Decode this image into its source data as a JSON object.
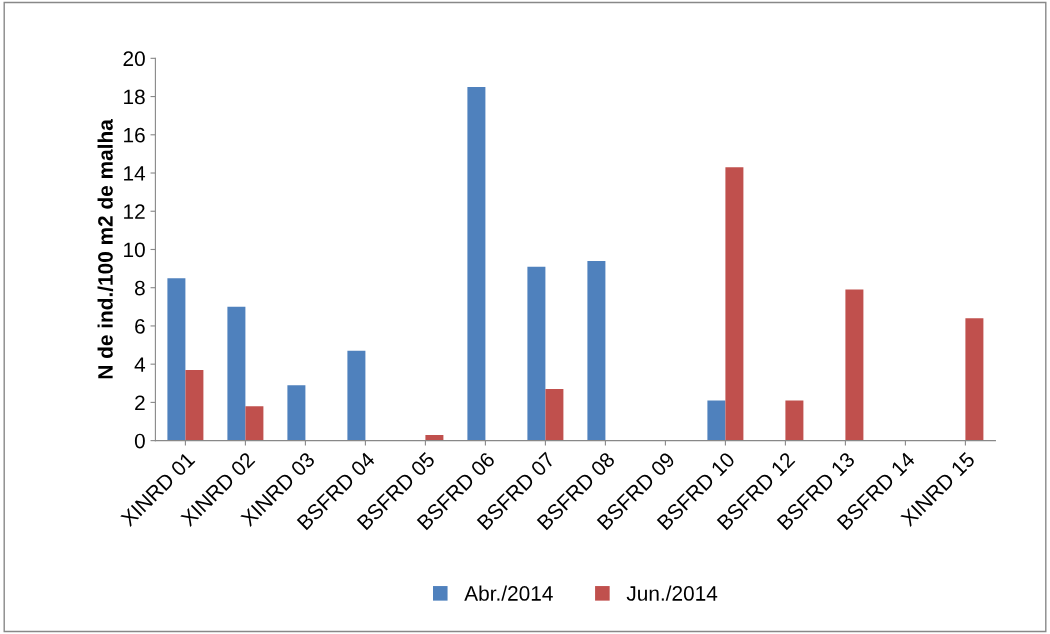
{
  "chart_data": {
    "type": "bar",
    "ylabel": "N de ind./100 m2 de malha",
    "categories": [
      "XINRD 01",
      "XINRD 02",
      "XINRD 03",
      "BSFRD 04",
      "BSFRD 05",
      "BSFRD 06",
      "BSFRD 07",
      "BSFRD 08",
      "BSFRD 09",
      "BSFRD 10",
      "BSFRD 12",
      "BSFRD 13",
      "BSFRD 14",
      "XINRD 15"
    ],
    "series": [
      {
        "name": "Abr./2014",
        "color": "#4f81bd",
        "values": [
          8.5,
          7.0,
          2.9,
          4.7,
          0,
          18.5,
          9.1,
          9.4,
          0,
          2.1,
          0,
          0,
          0,
          0
        ]
      },
      {
        "name": "Jun./2014",
        "color": "#c0504d",
        "values": [
          3.7,
          1.8,
          0,
          0,
          0.3,
          0,
          2.7,
          0,
          0,
          14.3,
          2.1,
          7.9,
          0,
          6.4
        ]
      }
    ],
    "ylim": [
      0,
      20
    ],
    "yticks": [
      0,
      2,
      4,
      6,
      8,
      10,
      12,
      14,
      16,
      18,
      20
    ],
    "grid": false,
    "legend": "bottom"
  }
}
